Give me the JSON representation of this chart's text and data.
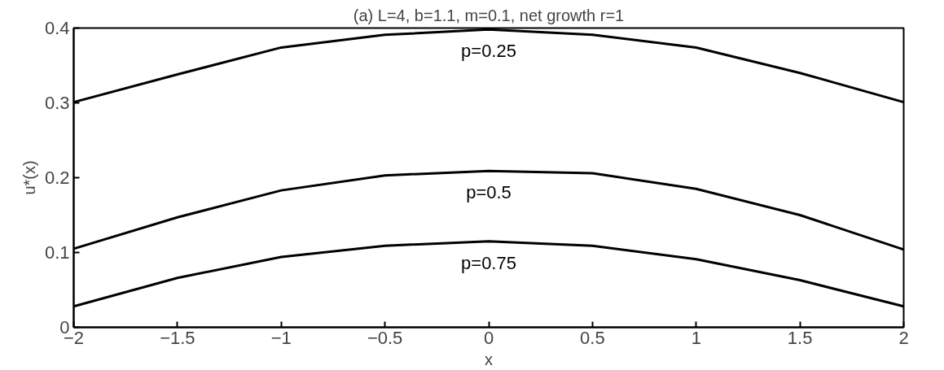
{
  "chart_data": {
    "type": "line",
    "title": "(a) L=4, b=1.1, m=0.1, net growth r=1",
    "xlabel": "x",
    "ylabel": "u*(x)",
    "x": [
      -2,
      -1.5,
      -1,
      -0.5,
      0,
      0.5,
      1,
      1.5,
      2
    ],
    "series": [
      {
        "name": "p=0.25",
        "color": "#000000",
        "values": [
          0.301,
          0.338,
          0.374,
          0.391,
          0.398,
          0.391,
          0.374,
          0.34,
          0.301
        ]
      },
      {
        "name": "p=0.5",
        "color": "#000000",
        "values": [
          0.105,
          0.147,
          0.183,
          0.203,
          0.209,
          0.206,
          0.185,
          0.15,
          0.104
        ]
      },
      {
        "name": "p=0.75",
        "color": "#000000",
        "values": [
          0.028,
          0.066,
          0.094,
          0.109,
          0.115,
          0.109,
          0.091,
          0.063,
          0.028
        ]
      }
    ],
    "xlim": [
      -2,
      2
    ],
    "ylim": [
      0,
      0.4
    ],
    "xticks": [
      -2,
      -1.5,
      -1,
      -0.5,
      0,
      0.5,
      1,
      1.5,
      2
    ],
    "yticks": [
      0,
      0.1,
      0.2,
      0.3,
      0.4
    ],
    "grid": false,
    "marker": "none",
    "line_style": "solid"
  }
}
